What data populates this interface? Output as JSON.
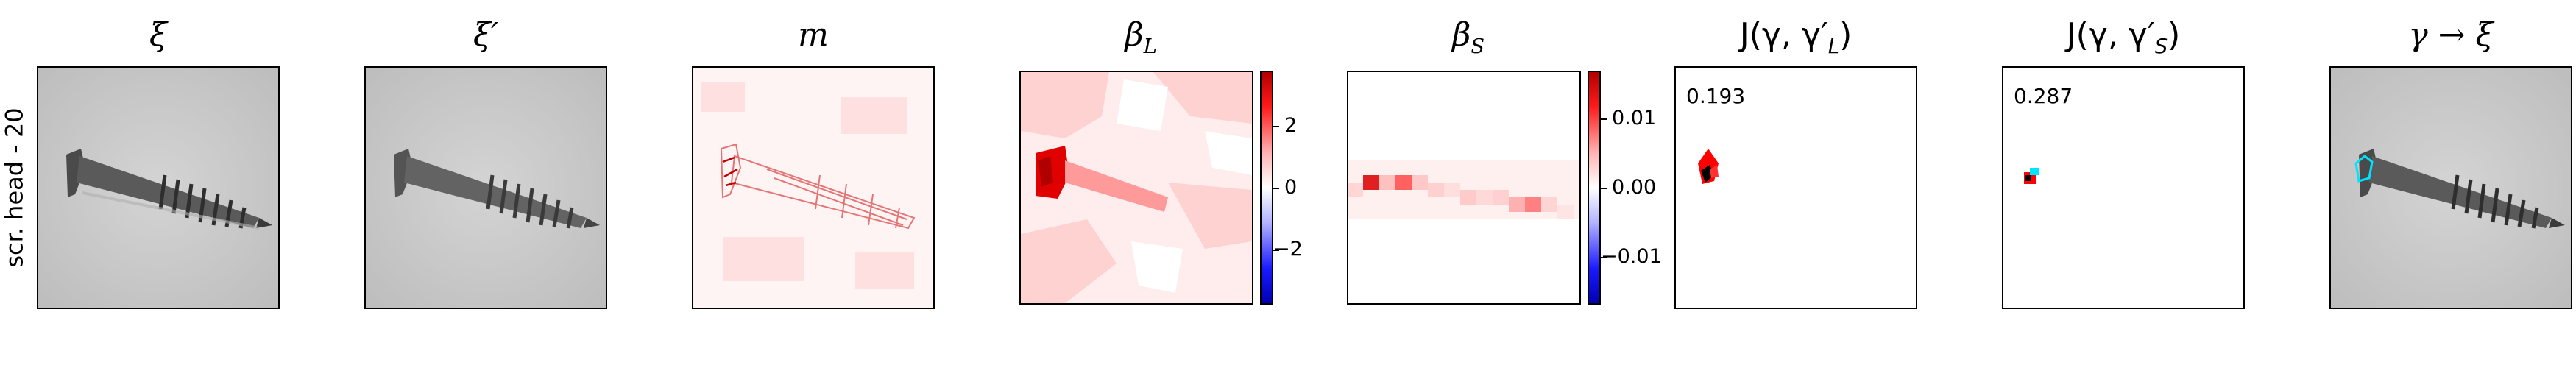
{
  "row_label": "scr. head - 20",
  "titles": {
    "xi": "ξ",
    "xi_prime": "ξ′",
    "m": "m",
    "beta_L_base": "β",
    "beta_L_sub": "L",
    "beta_S_base": "β",
    "beta_S_sub": "S",
    "jl_prefix": "J(γ, γ′",
    "jl_sub": "L",
    "jl_suffix": ")",
    "js_prefix": "J(γ, γ′",
    "js_sub": "S",
    "js_suffix": ")",
    "gamma_xi": "γ → ξ"
  },
  "colorbar_L": {
    "ticks": [
      "2",
      "0",
      "−2"
    ]
  },
  "colorbar_S": {
    "ticks": [
      "0.01",
      "0.00",
      "−0.01"
    ]
  },
  "scores": {
    "jl": "0.193",
    "js": "0.287"
  },
  "colors": {
    "positive": "#ff0000",
    "negative": "#0000ff",
    "highlight": "#00e5ff"
  }
}
